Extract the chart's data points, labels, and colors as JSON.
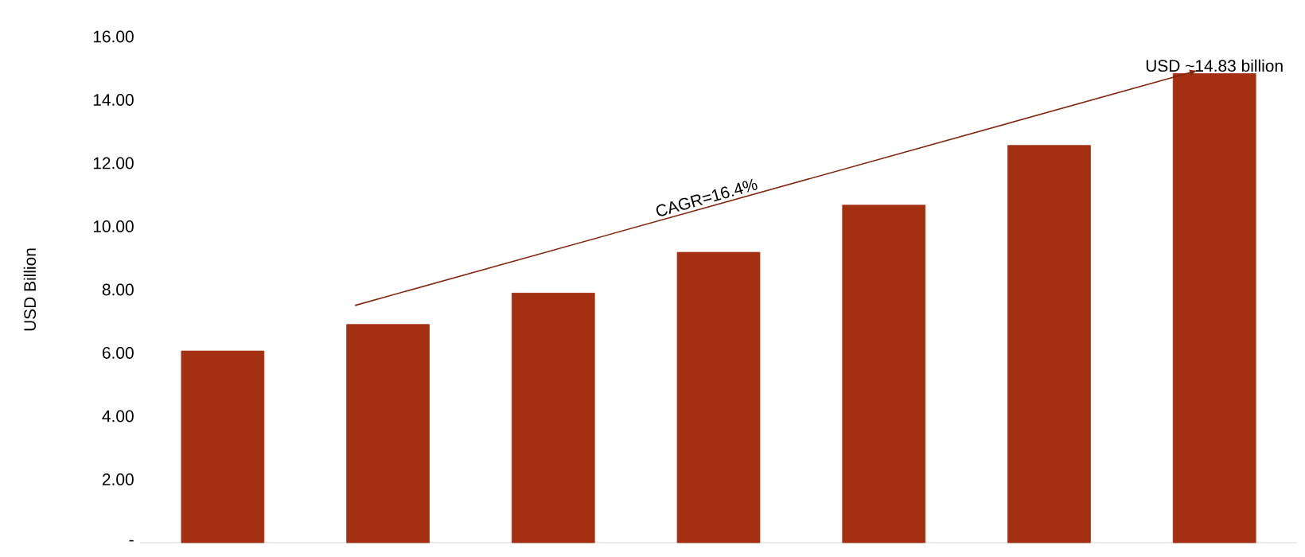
{
  "chart_data": {
    "type": "bar",
    "ylabel": "USD Billion",
    "categories": [
      null,
      null,
      null,
      null,
      null,
      null,
      null
    ],
    "values": [
      6.06,
      6.9,
      7.89,
      9.18,
      10.67,
      12.56,
      14.83
    ],
    "color": "#a33010",
    "ylim": [
      0,
      16
    ],
    "yticks": [
      {
        "value": 0,
        "label": "-"
      },
      {
        "value": 2,
        "label": "2.00"
      },
      {
        "value": 4,
        "label": "4.00"
      },
      {
        "value": 6,
        "label": "6.00"
      },
      {
        "value": 8,
        "label": "8.00"
      },
      {
        "value": 10,
        "label": "10.00"
      },
      {
        "value": 12,
        "label": "12.00"
      },
      {
        "value": 14,
        "label": "14.00"
      },
      {
        "value": 16,
        "label": "16.00"
      }
    ],
    "annotations": [
      "CAGR=16.4%",
      {
        "text": "USD ~14.83 billion",
        "y": 14.83
      }
    ]
  }
}
